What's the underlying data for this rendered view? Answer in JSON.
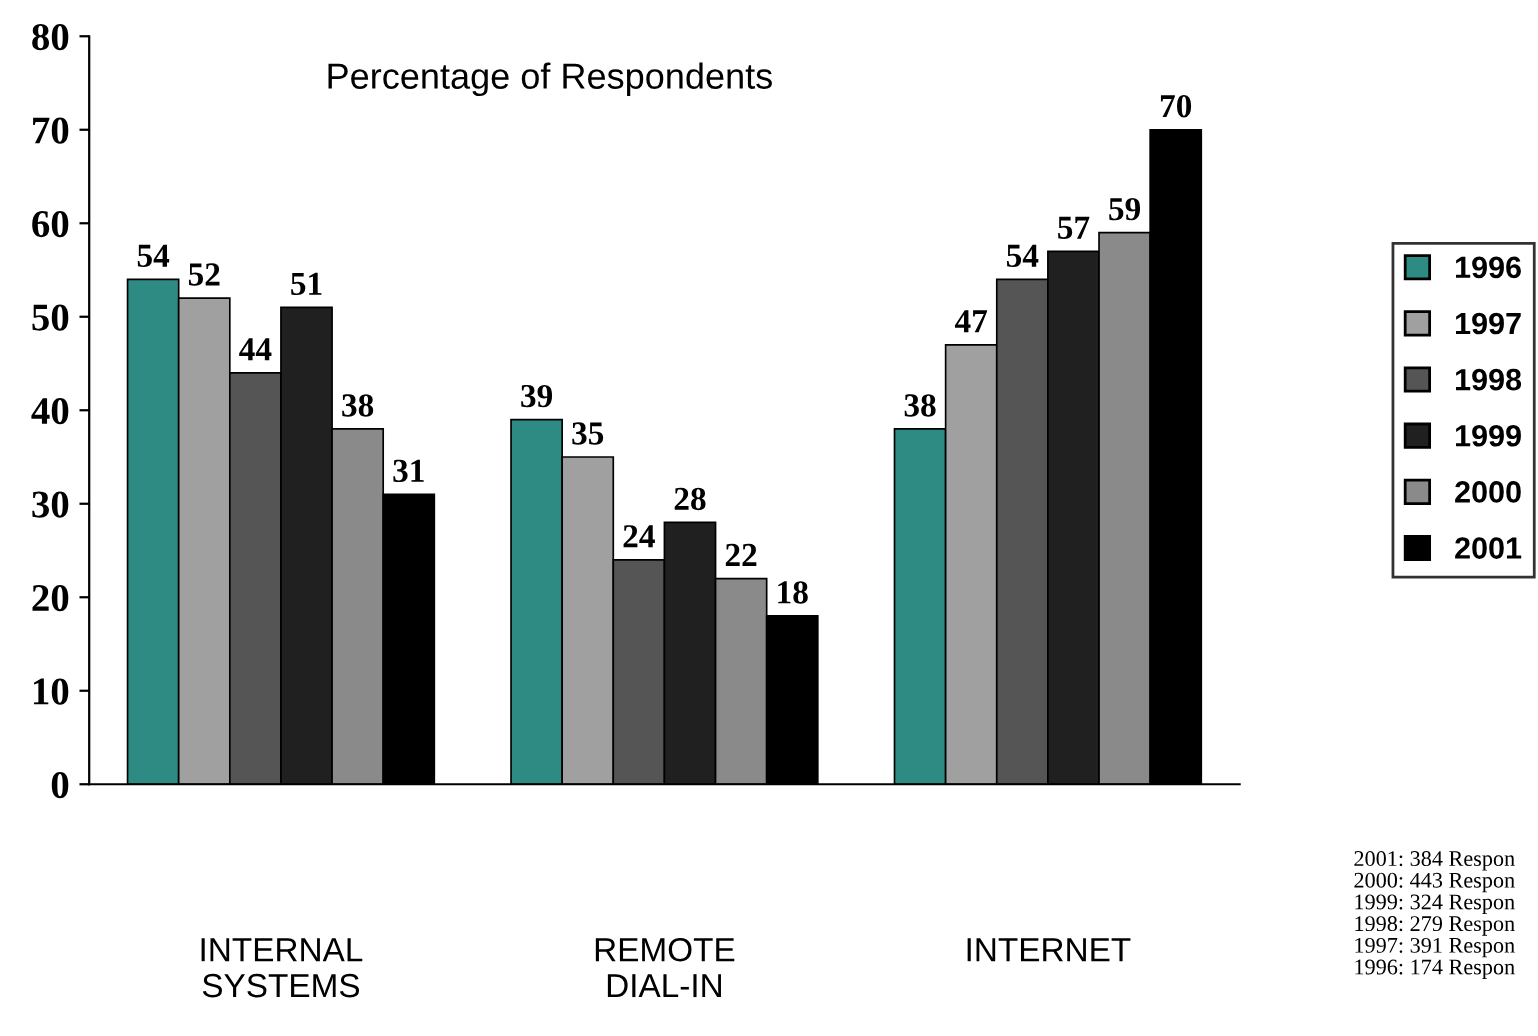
{
  "chart_data": {
    "type": "bar",
    "categories": [
      "INTERNAL\nSYSTEMS",
      "REMOTE\nDIAL-IN",
      "INTERNET"
    ],
    "series": [
      {
        "name": "1996",
        "color": "#2e8b84",
        "values": [
          54,
          39,
          38
        ]
      },
      {
        "name": "1997",
        "color": "#a0a0a0",
        "values": [
          52,
          35,
          47
        ]
      },
      {
        "name": "1998",
        "color": "#555555",
        "values": [
          44,
          24,
          54
        ]
      },
      {
        "name": "1999",
        "color": "#202020",
        "values": [
          51,
          28,
          57
        ]
      },
      {
        "name": "2000",
        "color": "#8a8a8a",
        "values": [
          38,
          22,
          59
        ]
      },
      {
        "name": "2001",
        "color": "#000000",
        "values": [
          31,
          18,
          70
        ]
      }
    ],
    "ylim": [
      0,
      80
    ],
    "yticks": [
      0,
      10,
      20,
      30,
      40,
      50,
      60,
      70,
      80
    ],
    "grid": false,
    "legend": "right",
    "data_labels": true,
    "annotations": [
      "Percentage of Respondents",
      "2001: 384 Respon\n2000: 443 Respon\n1999: 324 Respon\n1998: 279 Respon\n1997: 391 Respon\n1996: 174 Respon"
    ]
  }
}
